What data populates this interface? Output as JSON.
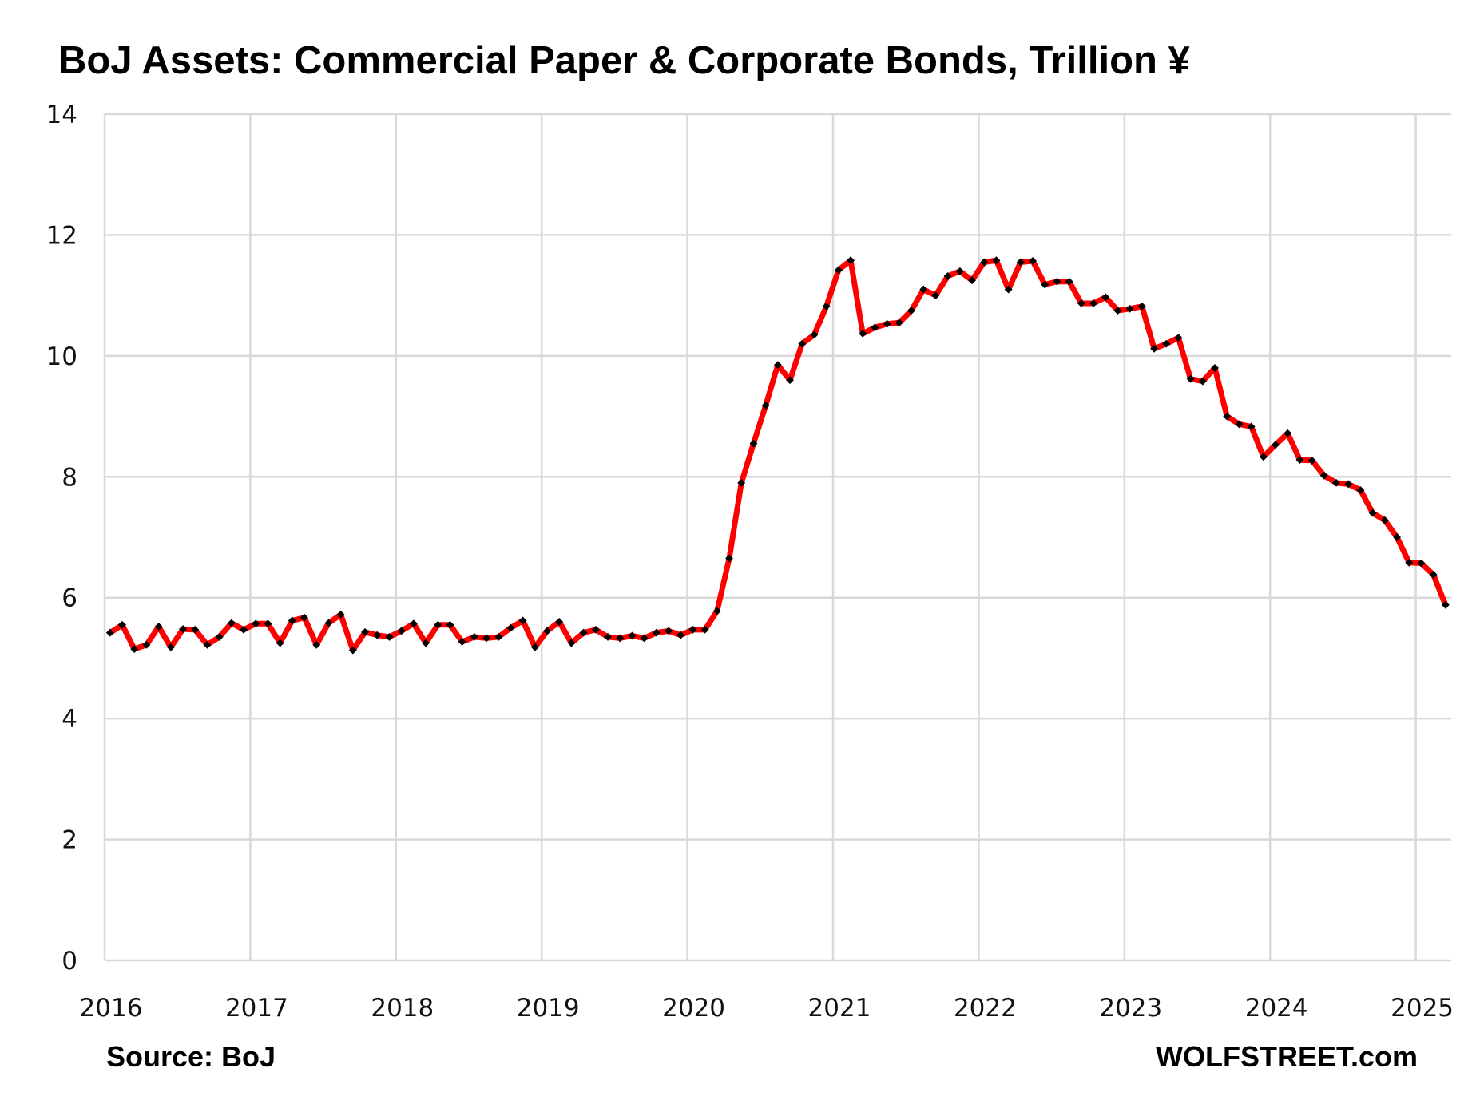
{
  "chart_data": {
    "type": "line",
    "title": "BoJ Assets: Commercial Paper & Corporate Bonds, Trillion ¥",
    "xlabel": "",
    "ylabel": "",
    "ylim": [
      0,
      14
    ],
    "yticks": [
      "0",
      "2",
      "4",
      "6",
      "8",
      "10",
      "12",
      "14"
    ],
    "xticks": [
      "2016",
      "2017",
      "2018",
      "2019",
      "2020",
      "2021",
      "2022",
      "2023",
      "2024",
      "2025"
    ],
    "grid": true,
    "legend": "none",
    "frequency": "monthly",
    "start": "2016-01",
    "line_color": "#ff0000",
    "marker_color": "#000000",
    "series": [
      {
        "values": [
          5.42,
          5.55,
          5.15,
          5.22,
          5.52,
          5.18,
          5.48,
          5.47,
          5.22,
          5.35,
          5.58,
          5.47,
          5.57,
          5.57,
          5.25,
          5.62,
          5.67,
          5.22,
          5.58,
          5.72,
          5.13,
          5.43,
          5.38,
          5.35,
          5.45,
          5.57,
          5.25,
          5.55,
          5.55,
          5.27,
          5.35,
          5.33,
          5.35,
          5.5,
          5.62,
          5.18,
          5.45,
          5.6,
          5.25,
          5.42,
          5.47,
          5.35,
          5.33,
          5.37,
          5.33,
          5.42,
          5.45,
          5.38,
          5.47,
          5.47,
          5.78,
          6.65,
          7.9,
          8.55,
          9.18,
          9.85,
          9.6,
          10.2,
          10.35,
          10.82,
          11.42,
          11.58,
          10.37,
          10.47,
          10.53,
          10.55,
          10.75,
          11.1,
          11.0,
          11.32,
          11.4,
          11.25,
          11.55,
          11.58,
          11.1,
          11.55,
          11.57,
          11.18,
          11.23,
          11.23,
          10.87,
          10.87,
          10.97,
          10.75,
          10.78,
          10.82,
          10.12,
          10.2,
          10.3,
          9.62,
          9.58,
          9.8,
          9.0,
          8.87,
          8.83,
          8.33,
          8.53,
          8.72,
          8.28,
          8.27,
          8.02,
          7.9,
          7.88,
          7.78,
          7.4,
          7.28,
          7.0,
          6.58,
          6.57,
          6.38,
          5.88
        ]
      }
    ],
    "source": "Source: BoJ",
    "brand": "WOLFSTREET.com"
  }
}
